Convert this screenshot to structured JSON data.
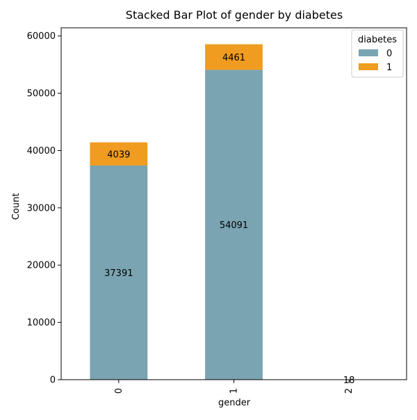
{
  "chart_data": {
    "type": "bar",
    "stacked": true,
    "title": "Stacked Bar Plot of gender by diabetes",
    "xlabel": "gender",
    "ylabel": "Count",
    "categories": [
      "0",
      "1",
      "2"
    ],
    "series": [
      {
        "name": "0",
        "values": [
          37391,
          54091,
          18
        ],
        "color": "#7aa4b2"
      },
      {
        "name": "1",
        "values": [
          4039,
          4461,
          0
        ],
        "color": "#f09c20"
      }
    ],
    "data_labels": [
      {
        "category": "0",
        "series": "0",
        "text": "37391"
      },
      {
        "category": "0",
        "series": "1",
        "text": "4039"
      },
      {
        "category": "1",
        "series": "0",
        "text": "54091"
      },
      {
        "category": "1",
        "series": "1",
        "text": "4461"
      },
      {
        "category": "2",
        "series": "0",
        "text": "18"
      }
    ],
    "ylim": [
      0,
      61425
    ],
    "yticks": [
      0,
      10000,
      20000,
      30000,
      40000,
      50000,
      60000
    ],
    "legend": {
      "title": "diabetes",
      "placement": "top-right"
    },
    "grid": false
  }
}
